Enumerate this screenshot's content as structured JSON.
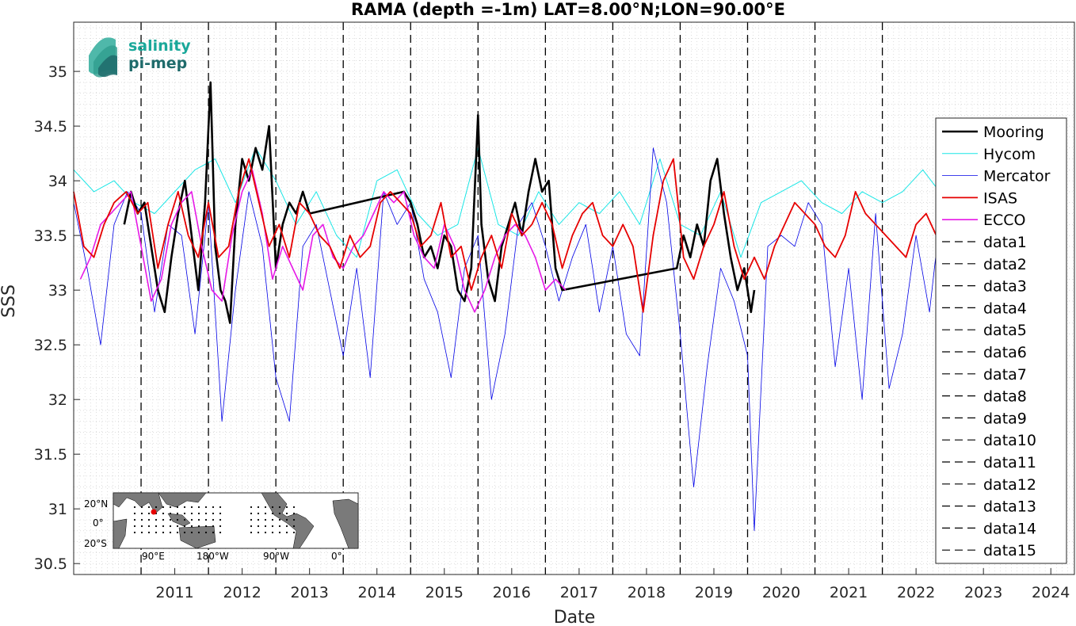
{
  "chart_data": {
    "type": "line",
    "title": "RAMA (depth =-1m) LAT=8.00°N;LON=90.00°E",
    "xlabel": "Date",
    "ylabel": "SSS",
    "xlim": [
      2010.0,
      2024.85
    ],
    "ylim": [
      30.4,
      35.45
    ],
    "x_ticks": [
      "2011",
      "2012",
      "2013",
      "2014",
      "2015",
      "2016",
      "2017",
      "2018",
      "2019",
      "2020",
      "2021",
      "2022",
      "2023",
      "2024"
    ],
    "y_ticks": [
      "30.5",
      "31",
      "31.5",
      "32",
      "32.5",
      "33",
      "33.5",
      "34",
      "34.5",
      "35"
    ],
    "grid": "minor dotted",
    "legend_position": "right",
    "year_lines": [
      2011,
      2012,
      2013,
      2014,
      2015,
      2016,
      2017,
      2018,
      2019,
      2020,
      2021,
      2022
    ],
    "colors": {
      "mooring": "#000000",
      "hycom": "#19e6e6",
      "mercator": "#0000e6",
      "isas": "#e60000",
      "ecco": "#e619e6"
    },
    "series": [
      {
        "name": "Mooring",
        "color": "#000000",
        "x": [
          2010.75,
          2010.85,
          2010.95,
          2011.05,
          2011.15,
          2011.25,
          2011.35,
          2011.45,
          2011.55,
          2011.65,
          2011.75,
          2011.85,
          2011.95,
          2012.03,
          2012.1,
          2012.18,
          2012.25,
          2012.32,
          2012.4,
          2012.5,
          2012.6,
          2012.7,
          2012.8,
          2012.9,
          2013.0,
          2013.1,
          2013.2,
          2013.3,
          2013.4,
          2013.5,
          2014.9,
          2015.0,
          2015.1,
          2015.2,
          2015.3,
          2015.4,
          2015.5,
          2015.6,
          2015.7,
          2015.8,
          2015.9,
          2016.0,
          2016.05,
          2016.15,
          2016.25,
          2016.35,
          2016.45,
          2016.55,
          2016.65,
          2016.75,
          2016.85,
          2016.95,
          2017.05,
          2017.15,
          2017.25,
          2018.95,
          2019.05,
          2019.15,
          2019.25,
          2019.35,
          2019.45,
          2019.55,
          2019.65,
          2019.75,
          2019.85,
          2019.95,
          2020.05,
          2020.1
        ],
        "y": [
          33.6,
          33.9,
          33.7,
          33.8,
          33.4,
          33.0,
          32.8,
          33.3,
          33.7,
          34.0,
          33.5,
          33.0,
          33.8,
          34.9,
          33.4,
          33.0,
          32.9,
          32.7,
          33.6,
          34.2,
          34.0,
          34.3,
          34.1,
          34.5,
          33.2,
          33.6,
          33.8,
          33.7,
          33.9,
          33.7,
          33.9,
          33.8,
          33.6,
          33.3,
          33.4,
          33.2,
          33.5,
          33.4,
          33.0,
          32.9,
          33.2,
          34.6,
          33.6,
          33.1,
          32.9,
          33.4,
          33.6,
          33.8,
          33.5,
          33.9,
          34.2,
          33.9,
          34.0,
          33.2,
          33.0,
          33.2,
          33.5,
          33.3,
          33.6,
          33.4,
          34.0,
          34.2,
          33.7,
          33.3,
          33.0,
          33.2,
          32.8,
          33.0
        ]
      },
      {
        "name": "Hycom",
        "color": "#19e6e6",
        "x": [
          2010.0,
          2010.3,
          2010.6,
          2010.9,
          2011.2,
          2011.5,
          2011.8,
          2012.1,
          2012.4,
          2012.7,
          2013.0,
          2013.3,
          2013.6,
          2013.9,
          2014.2,
          2014.5,
          2014.8,
          2015.1,
          2015.4,
          2015.7,
          2016.0,
          2016.3,
          2016.6,
          2016.9,
          2017.2,
          2017.5,
          2017.8,
          2018.1,
          2018.4,
          2018.7,
          2019.0,
          2019.3,
          2019.6,
          2019.9,
          2020.2,
          2020.5,
          2020.8,
          2021.1,
          2021.4,
          2021.7,
          2022.0,
          2022.3,
          2022.6,
          2022.85
        ],
        "y": [
          34.1,
          33.9,
          34.0,
          33.8,
          33.7,
          33.9,
          34.1,
          34.2,
          33.8,
          34.3,
          34.0,
          33.6,
          33.9,
          33.5,
          33.3,
          34.0,
          34.1,
          33.7,
          33.5,
          33.6,
          34.3,
          33.6,
          33.5,
          33.9,
          33.6,
          33.8,
          33.7,
          33.9,
          33.6,
          34.2,
          33.6,
          33.5,
          33.9,
          33.3,
          33.8,
          33.9,
          34.0,
          33.8,
          33.7,
          33.9,
          33.8,
          33.9,
          34.1,
          33.9
        ]
      },
      {
        "name": "Mercator",
        "color": "#0000e6",
        "x": [
          2010.0,
          2010.2,
          2010.4,
          2010.6,
          2010.8,
          2011.0,
          2011.2,
          2011.4,
          2011.6,
          2011.8,
          2012.0,
          2012.2,
          2012.4,
          2012.6,
          2012.8,
          2013.0,
          2013.2,
          2013.4,
          2013.6,
          2013.8,
          2014.0,
          2014.2,
          2014.4,
          2014.6,
          2014.8,
          2015.0,
          2015.2,
          2015.4,
          2015.6,
          2015.8,
          2016.0,
          2016.2,
          2016.4,
          2016.6,
          2016.8,
          2017.0,
          2017.2,
          2017.4,
          2017.6,
          2017.8,
          2018.0,
          2018.2,
          2018.4,
          2018.6,
          2018.8,
          2019.0,
          2019.2,
          2019.4,
          2019.6,
          2019.8,
          2020.0,
          2020.1,
          2020.3,
          2020.5,
          2020.7,
          2020.9,
          2021.1,
          2021.3,
          2021.5,
          2021.7,
          2021.9,
          2022.1,
          2022.3,
          2022.5,
          2022.7,
          2022.9,
          2023.1,
          2023.3,
          2023.5,
          2023.7,
          2023.9,
          2024.1,
          2024.3,
          2024.5,
          2024.7
        ],
        "y": [
          33.8,
          33.2,
          32.5,
          33.6,
          33.9,
          33.7,
          32.8,
          33.6,
          33.5,
          32.6,
          33.8,
          31.8,
          33.0,
          33.9,
          33.4,
          32.2,
          31.8,
          33.4,
          33.6,
          33.0,
          32.4,
          33.2,
          32.2,
          33.9,
          33.6,
          33.8,
          33.1,
          32.8,
          32.2,
          33.2,
          33.5,
          32.0,
          32.6,
          33.6,
          33.8,
          33.4,
          32.9,
          33.3,
          33.6,
          32.8,
          33.4,
          32.6,
          32.4,
          34.3,
          33.8,
          32.6,
          31.2,
          32.3,
          33.2,
          32.9,
          32.4,
          30.8,
          33.4,
          33.5,
          33.4,
          33.8,
          33.6,
          32.3,
          33.2,
          32.0,
          33.7,
          32.1,
          32.6,
          33.5,
          32.8,
          33.9,
          33.6,
          33.0,
          34.1,
          33.8,
          33.9,
          33.7,
          34.5,
          33.5,
          33.1
        ]
      },
      {
        "name": "ISAS",
        "color": "#e60000",
        "x": [
          2010.0,
          2010.15,
          2010.3,
          2010.45,
          2010.6,
          2010.78,
          2010.95,
          2011.1,
          2011.25,
          2011.4,
          2011.55,
          2011.7,
          2011.85,
          2012.0,
          2012.15,
          2012.3,
          2012.45,
          2012.6,
          2012.75,
          2012.9,
          2013.05,
          2013.2,
          2013.35,
          2013.5,
          2013.65,
          2013.8,
          2013.95,
          2014.1,
          2014.25,
          2014.4,
          2014.55,
          2014.7,
          2014.85,
          2015.0,
          2015.15,
          2015.3,
          2015.45,
          2015.6,
          2015.75,
          2015.9,
          2016.05,
          2016.2,
          2016.35,
          2016.5,
          2016.65,
          2016.8,
          2016.95,
          2017.1,
          2017.25,
          2017.4,
          2017.55,
          2017.7,
          2017.85,
          2018.0,
          2018.15,
          2018.3,
          2018.45,
          2018.6,
          2018.75,
          2018.9,
          2019.05,
          2019.2,
          2019.35,
          2019.5,
          2019.65,
          2019.8,
          2019.95,
          2020.1,
          2020.25,
          2020.4,
          2020.55,
          2020.7,
          2020.85,
          2021.0,
          2021.15,
          2021.3,
          2021.45,
          2021.6,
          2021.75,
          2021.9,
          2022.05,
          2022.2,
          2022.35,
          2022.5,
          2022.65,
          2022.8
        ],
        "y": [
          33.9,
          33.4,
          33.3,
          33.6,
          33.8,
          33.9,
          33.7,
          33.8,
          33.2,
          33.6,
          33.9,
          33.5,
          33.3,
          33.8,
          33.3,
          33.4,
          33.9,
          34.2,
          33.8,
          33.4,
          33.6,
          33.3,
          33.8,
          33.7,
          33.5,
          33.4,
          33.2,
          33.5,
          33.3,
          33.4,
          33.8,
          33.9,
          33.8,
          33.7,
          33.4,
          33.5,
          33.8,
          33.3,
          33.4,
          33.0,
          33.3,
          33.5,
          33.2,
          33.7,
          33.5,
          33.6,
          33.8,
          33.6,
          33.2,
          33.5,
          33.7,
          33.8,
          33.5,
          33.4,
          33.6,
          33.4,
          32.8,
          33.5,
          34.0,
          34.2,
          33.3,
          33.1,
          33.4,
          33.6,
          33.9,
          33.4,
          33.1,
          33.3,
          33.1,
          33.4,
          33.6,
          33.8,
          33.7,
          33.6,
          33.4,
          33.3,
          33.5,
          33.9,
          33.7,
          33.6,
          33.5,
          33.4,
          33.3,
          33.6,
          33.7,
          33.5
        ]
      },
      {
        "name": "ECCO",
        "color": "#e619e6",
        "x": [
          2010.1,
          2010.25,
          2010.4,
          2010.55,
          2010.7,
          2010.85,
          2011.0,
          2011.15,
          2011.3,
          2011.45,
          2011.6,
          2011.75,
          2011.9,
          2012.05,
          2012.2,
          2012.35,
          2012.5,
          2012.65,
          2012.8,
          2012.95,
          2013.1,
          2013.25,
          2013.4,
          2013.55,
          2013.7,
          2013.85,
          2014.0,
          2014.15,
          2014.3,
          2014.45,
          2014.6,
          2014.75,
          2014.9,
          2015.05,
          2015.2,
          2015.35,
          2015.5,
          2015.65,
          2015.8,
          2015.95,
          2016.1,
          2016.25,
          2016.4,
          2016.55,
          2016.7,
          2016.85,
          2017.0,
          2017.15,
          2017.3
        ],
        "y": [
          33.1,
          33.3,
          33.6,
          33.7,
          33.8,
          33.9,
          33.4,
          32.9,
          33.1,
          33.6,
          33.8,
          33.9,
          33.4,
          33.0,
          32.9,
          33.5,
          33.9,
          34.1,
          33.7,
          33.1,
          33.4,
          33.2,
          33.0,
          33.5,
          33.6,
          33.3,
          33.2,
          33.4,
          33.5,
          33.7,
          33.9,
          33.8,
          33.9,
          33.5,
          33.3,
          33.2,
          33.6,
          33.4,
          33.0,
          32.8,
          33.0,
          33.3,
          33.5,
          33.6,
          33.5,
          33.3,
          33.0,
          33.1,
          33.0
        ]
      },
      {
        "name": "data1",
        "color": "#000000"
      },
      {
        "name": "data2",
        "color": "#000000"
      },
      {
        "name": "data3",
        "color": "#000000"
      },
      {
        "name": "data4",
        "color": "#000000"
      },
      {
        "name": "data5",
        "color": "#000000"
      },
      {
        "name": "data6",
        "color": "#000000"
      },
      {
        "name": "data7",
        "color": "#000000"
      },
      {
        "name": "data8",
        "color": "#000000"
      },
      {
        "name": "data9",
        "color": "#000000"
      },
      {
        "name": "data10",
        "color": "#000000"
      },
      {
        "name": "data11",
        "color": "#000000"
      },
      {
        "name": "data12",
        "color": "#000000"
      },
      {
        "name": "data13",
        "color": "#000000"
      },
      {
        "name": "data14",
        "color": "#000000"
      },
      {
        "name": "data15",
        "color": "#000000"
      }
    ]
  },
  "logo": {
    "line1": "salinity",
    "line2": "pi-mep",
    "color1": "#1aa89a",
    "color2": "#1f6b6b"
  },
  "inset_map": {
    "lat_labels": [
      "20°N",
      "0°",
      "20°S"
    ],
    "lon_labels": [
      "90°E",
      "180°W",
      "90°W",
      "0°"
    ],
    "marker_color": "#e60000"
  }
}
